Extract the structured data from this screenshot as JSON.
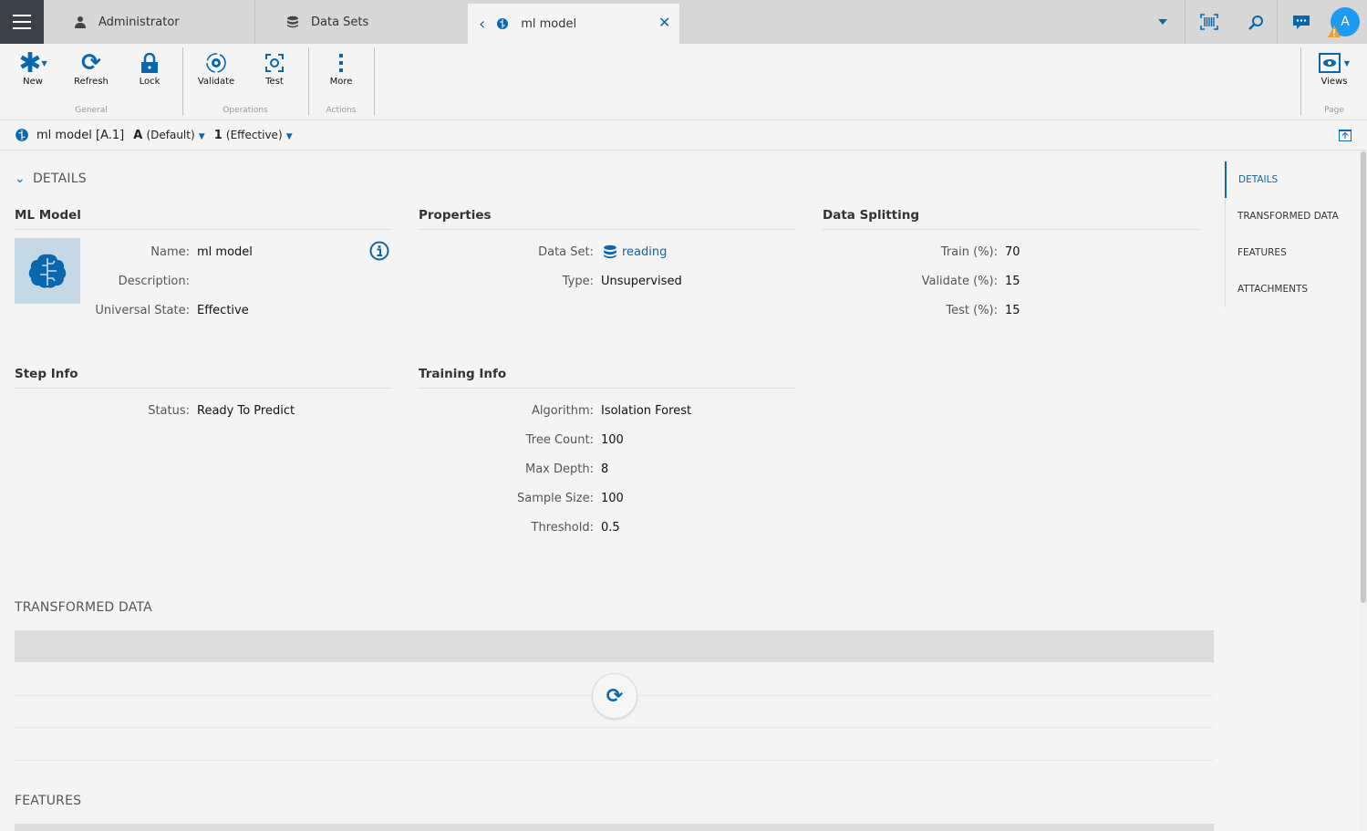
{
  "tabs": [
    {
      "label": "Administrator",
      "icon": "user-icon"
    },
    {
      "label": "Data Sets",
      "icon": "database-icon"
    },
    {
      "label": "ml model",
      "icon": "brain-icon",
      "active": true
    }
  ],
  "user": {
    "avatar_letter": "A"
  },
  "toolbar": {
    "buttons": [
      {
        "label": "New"
      },
      {
        "label": "Refresh"
      },
      {
        "label": "Lock"
      },
      {
        "label": "Validate"
      },
      {
        "label": "Test"
      },
      {
        "label": "More"
      },
      {
        "label": "Views"
      }
    ],
    "groups": [
      "General",
      "Operations",
      "Actions",
      "Page"
    ]
  },
  "breadcrumb": {
    "title": "ml model [A.1]",
    "revision_letter": "A",
    "revision_label": "(Default)",
    "state_num": "1",
    "state_label": "(Effective)"
  },
  "details": {
    "title": "DETAILS",
    "ml_model": {
      "heading": "ML Model",
      "fields": [
        {
          "label": "Name:",
          "value": "ml model"
        },
        {
          "label": "Description:",
          "value": ""
        },
        {
          "label": "Universal State:",
          "value": "Effective"
        }
      ]
    },
    "properties": {
      "heading": "Properties",
      "fields": [
        {
          "label": "Data Set:",
          "value": "reading"
        },
        {
          "label": "Type:",
          "value": "Unsupervised"
        }
      ]
    },
    "data_splitting": {
      "heading": "Data Splitting",
      "fields": [
        {
          "label": "Train (%):",
          "value": "70"
        },
        {
          "label": "Validate (%):",
          "value": "15"
        },
        {
          "label": "Test (%):",
          "value": "15"
        }
      ]
    },
    "step_info": {
      "heading": "Step Info",
      "fields": [
        {
          "label": "Status:",
          "value": "Ready To Predict"
        }
      ]
    },
    "training_info": {
      "heading": "Training Info",
      "fields": [
        {
          "label": "Algorithm:",
          "value": "Isolation Forest"
        },
        {
          "label": "Tree Count:",
          "value": "100"
        },
        {
          "label": "Max Depth:",
          "value": "8"
        },
        {
          "label": "Sample Size:",
          "value": "100"
        },
        {
          "label": "Threshold:",
          "value": "0.5"
        }
      ]
    }
  },
  "sections": {
    "transformed": "TRANSFORMED DATA",
    "features": "FEATURES"
  },
  "right_nav": [
    "DETAILS",
    "TRANSFORMED DATA",
    "FEATURES",
    "ATTACHMENTS"
  ],
  "colors": {
    "accent": "#0b67ad",
    "avatar": "#1e9bf0",
    "warning": "#f0a030"
  }
}
